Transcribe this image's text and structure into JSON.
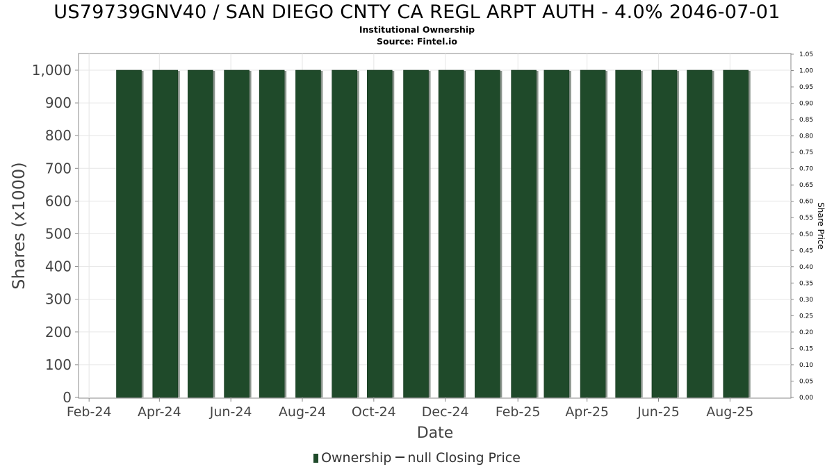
{
  "header": {
    "title": "US79739GNV40 / SAN DIEGO CNTY CA REGL ARPT AUTH - 4.0% 2046-07-01",
    "subtitle": "Institutional Ownership",
    "source": "Source: Fintel.io"
  },
  "legend": {
    "ownership_label": "Ownership",
    "price_label": "null Closing Price"
  },
  "colors": {
    "bar_fill": "#1f4a2a",
    "bar_shadow": "#8c968e",
    "grid": "#e6e6e6",
    "axis": "#888888"
  },
  "chart_data": {
    "type": "bar",
    "title": "US79739GNV40 / SAN DIEGO CNTY CA REGL ARPT AUTH - 4.0% 2046-07-01",
    "subtitle": "Institutional Ownership",
    "xlabel": "Date",
    "ylabel": "Shares (x1000)",
    "y2label": "Share Price",
    "x_ticks": [
      "Feb-24",
      "Apr-24",
      "Jun-24",
      "Aug-24",
      "Oct-24",
      "Dec-24",
      "Feb-25",
      "Apr-25",
      "Jun-25",
      "Aug-25"
    ],
    "x_tick_dates": [
      "2024-02-01",
      "2024-04-01",
      "2024-06-01",
      "2024-08-01",
      "2024-10-01",
      "2024-12-01",
      "2025-02-01",
      "2025-04-01",
      "2025-06-01",
      "2025-08-01"
    ],
    "xlim": [
      "2024-01-23",
      "2025-09-22"
    ],
    "ylim": [
      0,
      1050
    ],
    "y_ticks": [
      0,
      100,
      200,
      300,
      400,
      500,
      600,
      700,
      800,
      900,
      1000
    ],
    "y_tick_labels": [
      "0",
      "100",
      "200",
      "300",
      "400",
      "500",
      "600",
      "700",
      "800",
      "900",
      "1,000"
    ],
    "y2lim": [
      0,
      1.05
    ],
    "y2_ticks": [
      "0.00",
      "0.05",
      "0.10",
      "0.15",
      "0.20",
      "0.25",
      "0.30",
      "0.35",
      "0.40",
      "0.45",
      "0.50",
      "0.55",
      "0.60",
      "0.65",
      "0.70",
      "0.75",
      "0.80",
      "0.85",
      "0.90",
      "0.95",
      "1.00",
      "1.05"
    ],
    "grid": true,
    "legend_position": "bottom",
    "series": [
      {
        "name": "Ownership",
        "x": [
          "2024-03-06",
          "2024-04-06",
          "2024-05-06",
          "2024-06-06",
          "2024-07-06",
          "2024-08-06",
          "2024-09-06",
          "2024-10-06",
          "2024-11-06",
          "2024-12-06",
          "2025-01-06",
          "2025-02-06",
          "2025-03-06",
          "2025-04-06",
          "2025-05-06",
          "2025-06-06",
          "2025-07-06",
          "2025-08-06"
        ],
        "values": [
          1000,
          1000,
          1000,
          1000,
          1000,
          1000,
          1000,
          1000,
          1000,
          1000,
          1000,
          1000,
          1000,
          1000,
          1000,
          1000,
          1000,
          1000
        ]
      }
    ]
  }
}
